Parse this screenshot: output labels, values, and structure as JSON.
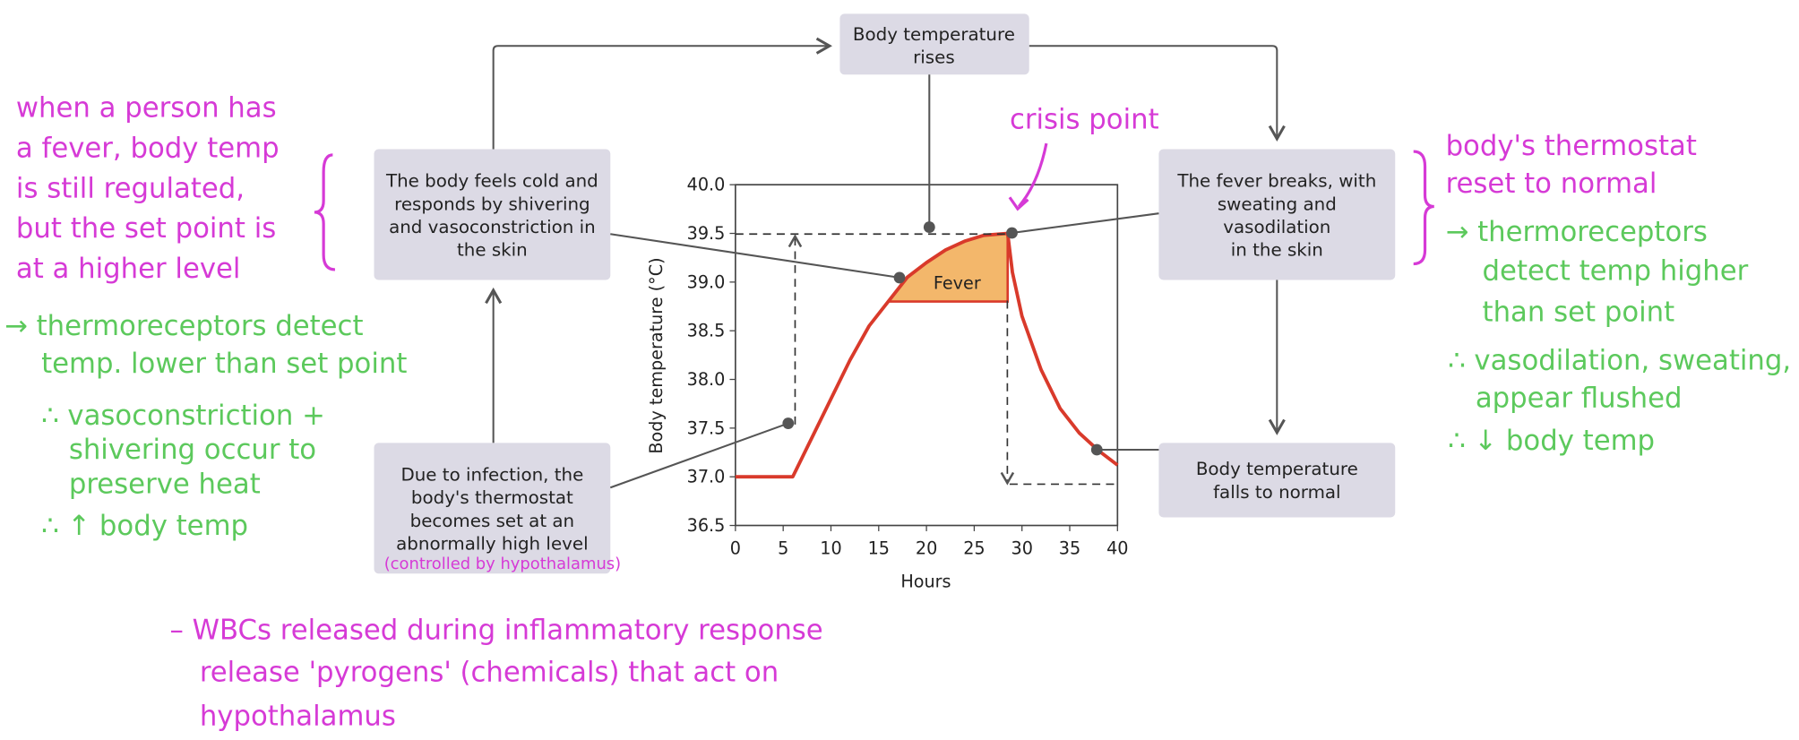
{
  "boxes": [
    {
      "lines": [
        "Body temperature",
        "rises"
      ]
    },
    {
      "lines": [
        "The body feels cold and",
        "responds by shivering",
        "and vasoconstriction in",
        "the skin"
      ]
    },
    {
      "lines": [
        "The fever breaks, with",
        "sweating and",
        "vasodilation",
        "in the skin"
      ]
    },
    {
      "lines": [
        "Due to infection, the",
        "body's thermostat",
        "becomes set at an",
        "abnormally high level"
      ]
    },
    {
      "lines": [
        "Body temperature",
        "falls to normal"
      ]
    }
  ],
  "chart_data": {
    "type": "line",
    "xlabel": "Hours",
    "ylabel": "Body temperature (°C)",
    "area_label": "Fever",
    "x": [
      0,
      6,
      8,
      10,
      12,
      14,
      16,
      18,
      20,
      22,
      24,
      26,
      28.5,
      29,
      30,
      32,
      34,
      36,
      38,
      40
    ],
    "values": [
      37,
      37,
      37.4,
      37.8,
      38.2,
      38.55,
      38.8,
      39.05,
      39.2,
      39.33,
      39.42,
      39.48,
      39.5,
      39.1,
      38.65,
      38.1,
      37.7,
      37.45,
      37.27,
      37.12
    ],
    "fever_threshold": 38.8,
    "color": "#d93a2b",
    "fill": "#f3b76b",
    "xlim": [
      0,
      40
    ],
    "ylim": [
      36.5,
      40
    ],
    "xticks": [
      0,
      5,
      10,
      15,
      20,
      25,
      30,
      35,
      40
    ],
    "yticks": [
      36.5,
      {
        "value": 37,
        "label": "37.0"
      },
      37.5,
      {
        "value": 38,
        "label": "38.0"
      },
      38.5,
      {
        "value": 39,
        "label": "39.0"
      },
      39.5,
      {
        "value": 40,
        "label": "40.0"
      }
    ]
  },
  "annotations": {
    "crisis_point": "crisis point",
    "hypothalamus": "(controlled by hypothalamus)",
    "left_note": [
      "when a person has",
      "a fever, body temp",
      "is still regulated,",
      "but the set point is",
      "at a higher level"
    ],
    "left_green": [
      "→ thermoreceptors detect",
      "temp. lower than set point",
      "∴ vasoconstriction +",
      "shivering occur to",
      "preserve heat",
      "∴ ↑ body temp"
    ],
    "right_note": [
      "body's thermostat",
      "reset to normal"
    ],
    "right_green": [
      "→ thermoreceptors",
      "detect temp higher",
      "than set point",
      "∴ vasodilation, sweating,",
      "appear flushed",
      "∴ ↓ body temp"
    ],
    "bottom_note": [
      "– WBCs released during inflammatory response",
      "release 'pyrogens' (chemicals) that act on",
      "hypothalamus"
    ]
  }
}
